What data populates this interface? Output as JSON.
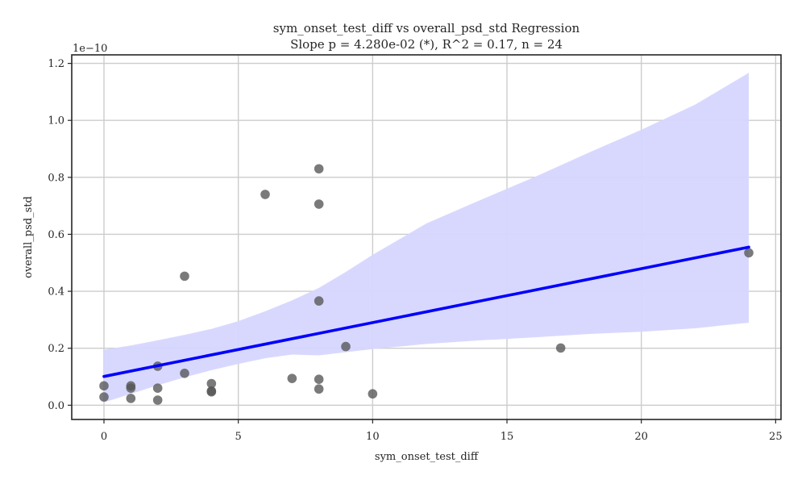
{
  "chart_data": {
    "type": "scatter",
    "title": "sym_onset_test_diff vs overall_psd_std Regression",
    "subtitle": "Slope p = 4.280e-02 (*), R^2 = 0.17, n = 24",
    "xlabel": "sym_onset_test_diff",
    "ylabel": "overall_psd_std",
    "y_scale_label": "1e−10",
    "xlim": [
      -1.2,
      25.2
    ],
    "ylim": [
      -0.05,
      1.23
    ],
    "x_ticks": [
      0,
      5,
      10,
      15,
      20,
      25
    ],
    "y_ticks": [
      0.0,
      0.2,
      0.4,
      0.6,
      0.8,
      1.0,
      1.2
    ],
    "x_tick_labels": [
      "0",
      "5",
      "10",
      "15",
      "20",
      "25"
    ],
    "y_tick_labels": [
      "0.0",
      "0.2",
      "0.4",
      "0.6",
      "0.8",
      "1.0",
      "1.2"
    ],
    "grid": true,
    "colors": {
      "points": "#555555",
      "line": "#0000ff",
      "band": "#d6d6ff",
      "grid": "#cccccc",
      "axes": "#262626"
    },
    "points": [
      {
        "x": 0,
        "y": 0.068
      },
      {
        "x": 0,
        "y": 0.029
      },
      {
        "x": 1,
        "y": 0.068
      },
      {
        "x": 1,
        "y": 0.06
      },
      {
        "x": 1,
        "y": 0.024
      },
      {
        "x": 2,
        "y": 0.137
      },
      {
        "x": 2,
        "y": 0.06
      },
      {
        "x": 2,
        "y": 0.018
      },
      {
        "x": 3,
        "y": 0.453
      },
      {
        "x": 3,
        "y": 0.112
      },
      {
        "x": 4,
        "y": 0.076
      },
      {
        "x": 4,
        "y": 0.05
      },
      {
        "x": 4,
        "y": 0.047
      },
      {
        "x": 6,
        "y": 0.74
      },
      {
        "x": 7,
        "y": 0.094
      },
      {
        "x": 8,
        "y": 0.83
      },
      {
        "x": 8,
        "y": 0.706
      },
      {
        "x": 8,
        "y": 0.366
      },
      {
        "x": 8,
        "y": 0.091
      },
      {
        "x": 8,
        "y": 0.057
      },
      {
        "x": 9,
        "y": 0.206
      },
      {
        "x": 10,
        "y": 0.04
      },
      {
        "x": 17,
        "y": 0.201
      },
      {
        "x": 24,
        "y": 0.535
      }
    ],
    "regression": {
      "x0": 0,
      "y0": 0.101,
      "x1": 24,
      "y1": 0.555
    },
    "confidence_band": {
      "upper": [
        [
          0,
          0.195
        ],
        [
          1,
          0.21
        ],
        [
          2,
          0.228
        ],
        [
          3,
          0.247
        ],
        [
          4,
          0.268
        ],
        [
          5,
          0.295
        ],
        [
          6,
          0.33
        ],
        [
          7,
          0.368
        ],
        [
          8,
          0.412
        ],
        [
          9,
          0.468
        ],
        [
          10,
          0.528
        ],
        [
          12,
          0.638
        ],
        [
          14,
          0.72
        ],
        [
          16,
          0.8
        ],
        [
          18,
          0.885
        ],
        [
          20,
          0.967
        ],
        [
          22,
          1.055
        ],
        [
          24,
          1.167
        ]
      ],
      "lower": [
        [
          0,
          0.01
        ],
        [
          1,
          0.04
        ],
        [
          2,
          0.07
        ],
        [
          3,
          0.098
        ],
        [
          4,
          0.123
        ],
        [
          5,
          0.145
        ],
        [
          6,
          0.165
        ],
        [
          7,
          0.178
        ],
        [
          8,
          0.175
        ],
        [
          9,
          0.186
        ],
        [
          10,
          0.197
        ],
        [
          12,
          0.215
        ],
        [
          14,
          0.228
        ],
        [
          16,
          0.238
        ],
        [
          18,
          0.25
        ],
        [
          20,
          0.258
        ],
        [
          22,
          0.27
        ],
        [
          24,
          0.29
        ]
      ]
    }
  }
}
